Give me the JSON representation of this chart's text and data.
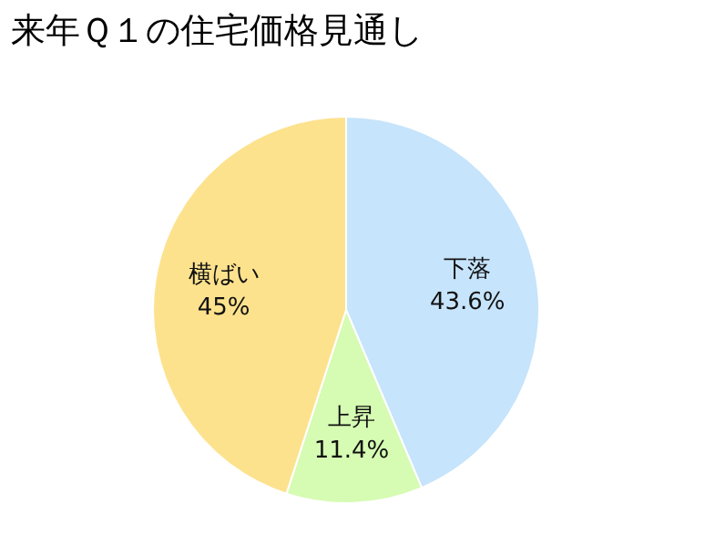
{
  "chart_data": {
    "type": "pie",
    "title": "来年Ｑ１の住宅価格見通し",
    "categories": [
      "下落",
      "上昇",
      "横ばい"
    ],
    "values": [
      43.6,
      11.4,
      45
    ],
    "value_labels": [
      "43.6%",
      "11.4%",
      "45%"
    ],
    "colors": [
      "#c6e4fb",
      "#d6fbb3",
      "#fde28e"
    ]
  }
}
